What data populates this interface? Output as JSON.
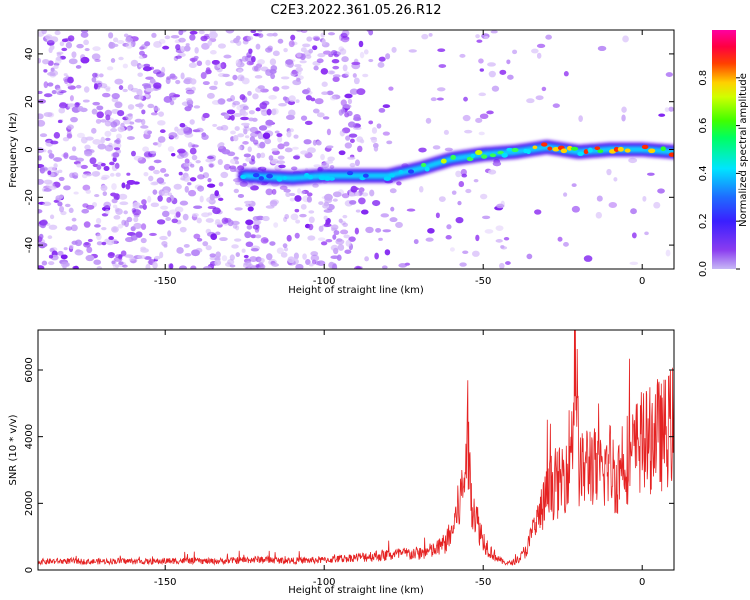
{
  "title": "C2E3.2022.361.05.26.R12",
  "colors": {
    "series": "#e52222",
    "axis": "#000000",
    "background": "#ffffff"
  },
  "chart_data": [
    {
      "type": "heatmap",
      "xlabel": "Height of straight line (km)",
      "ylabel": "Frequency (Hz)",
      "xlim": [
        -190,
        10
      ],
      "ylim": [
        -50,
        50
      ],
      "xticks": [
        -150,
        -100,
        -50,
        0
      ],
      "yticks": [
        -40,
        -20,
        0,
        20,
        40
      ],
      "colorbar": {
        "label": "Normalized spectral amplitude",
        "range": [
          0,
          1
        ],
        "ticks": [
          0.0,
          0.2,
          0.4,
          0.6,
          0.8
        ],
        "colormap": "rainbow (violet-blue-cyan-green-yellow-red-magenta)"
      },
      "ridge": {
        "description": "main trace frequency vs height",
        "x": [
          -125,
          -110,
          -100,
          -90,
          -80,
          -70,
          -60,
          -50,
          -40,
          -30,
          -20,
          -10,
          0,
          10
        ],
        "y": [
          -11,
          -12,
          -11,
          -11,
          -11,
          -8,
          -4,
          -2,
          -1,
          1,
          -1,
          0,
          0,
          -1
        ]
      }
    },
    {
      "type": "line",
      "xlabel": "Height of straight line (km)",
      "ylabel": "SNR (10 * v/v)",
      "xlim": [
        -190,
        10
      ],
      "ylim": [
        0,
        7200
      ],
      "xticks": [
        -150,
        -100,
        -50,
        0
      ],
      "yticks": [
        0,
        2000,
        4000,
        6000
      ],
      "series": [
        {
          "x": [
            -190,
            -185,
            -180,
            -175,
            -170,
            -165,
            -160,
            -155,
            -150,
            -145,
            -140,
            -135,
            -130,
            -125,
            -120,
            -115,
            -110,
            -105,
            -100,
            -95,
            -90,
            -85,
            -80,
            -75,
            -70,
            -65,
            -62,
            -60,
            -58,
            -56,
            -55,
            -54,
            -52,
            -50,
            -48,
            -46,
            -44,
            -42,
            -40,
            -38,
            -36,
            -34,
            -32,
            -30,
            -28,
            -26,
            -24,
            -22,
            -21,
            -20,
            -19,
            -18,
            -16,
            -14,
            -12,
            -10,
            -8,
            -6,
            -4,
            -2,
            0,
            2,
            4,
            6,
            8,
            10
          ],
          "y": [
            250,
            260,
            270,
            250,
            260,
            270,
            260,
            250,
            270,
            280,
            270,
            260,
            280,
            300,
            320,
            290,
            280,
            290,
            300,
            330,
            380,
            420,
            450,
            480,
            500,
            600,
            800,
            1100,
            1800,
            2600,
            4300,
            2400,
            1500,
            900,
            600,
            400,
            250,
            200,
            250,
            400,
            700,
            1200,
            1700,
            2200,
            2600,
            2600,
            3000,
            4000,
            7200,
            3200,
            2900,
            3100,
            3300,
            2800,
            3000,
            3200,
            2700,
            3500,
            3300,
            3600,
            3900,
            3800,
            4200,
            4000,
            4200,
            4400
          ]
        }
      ]
    }
  ]
}
